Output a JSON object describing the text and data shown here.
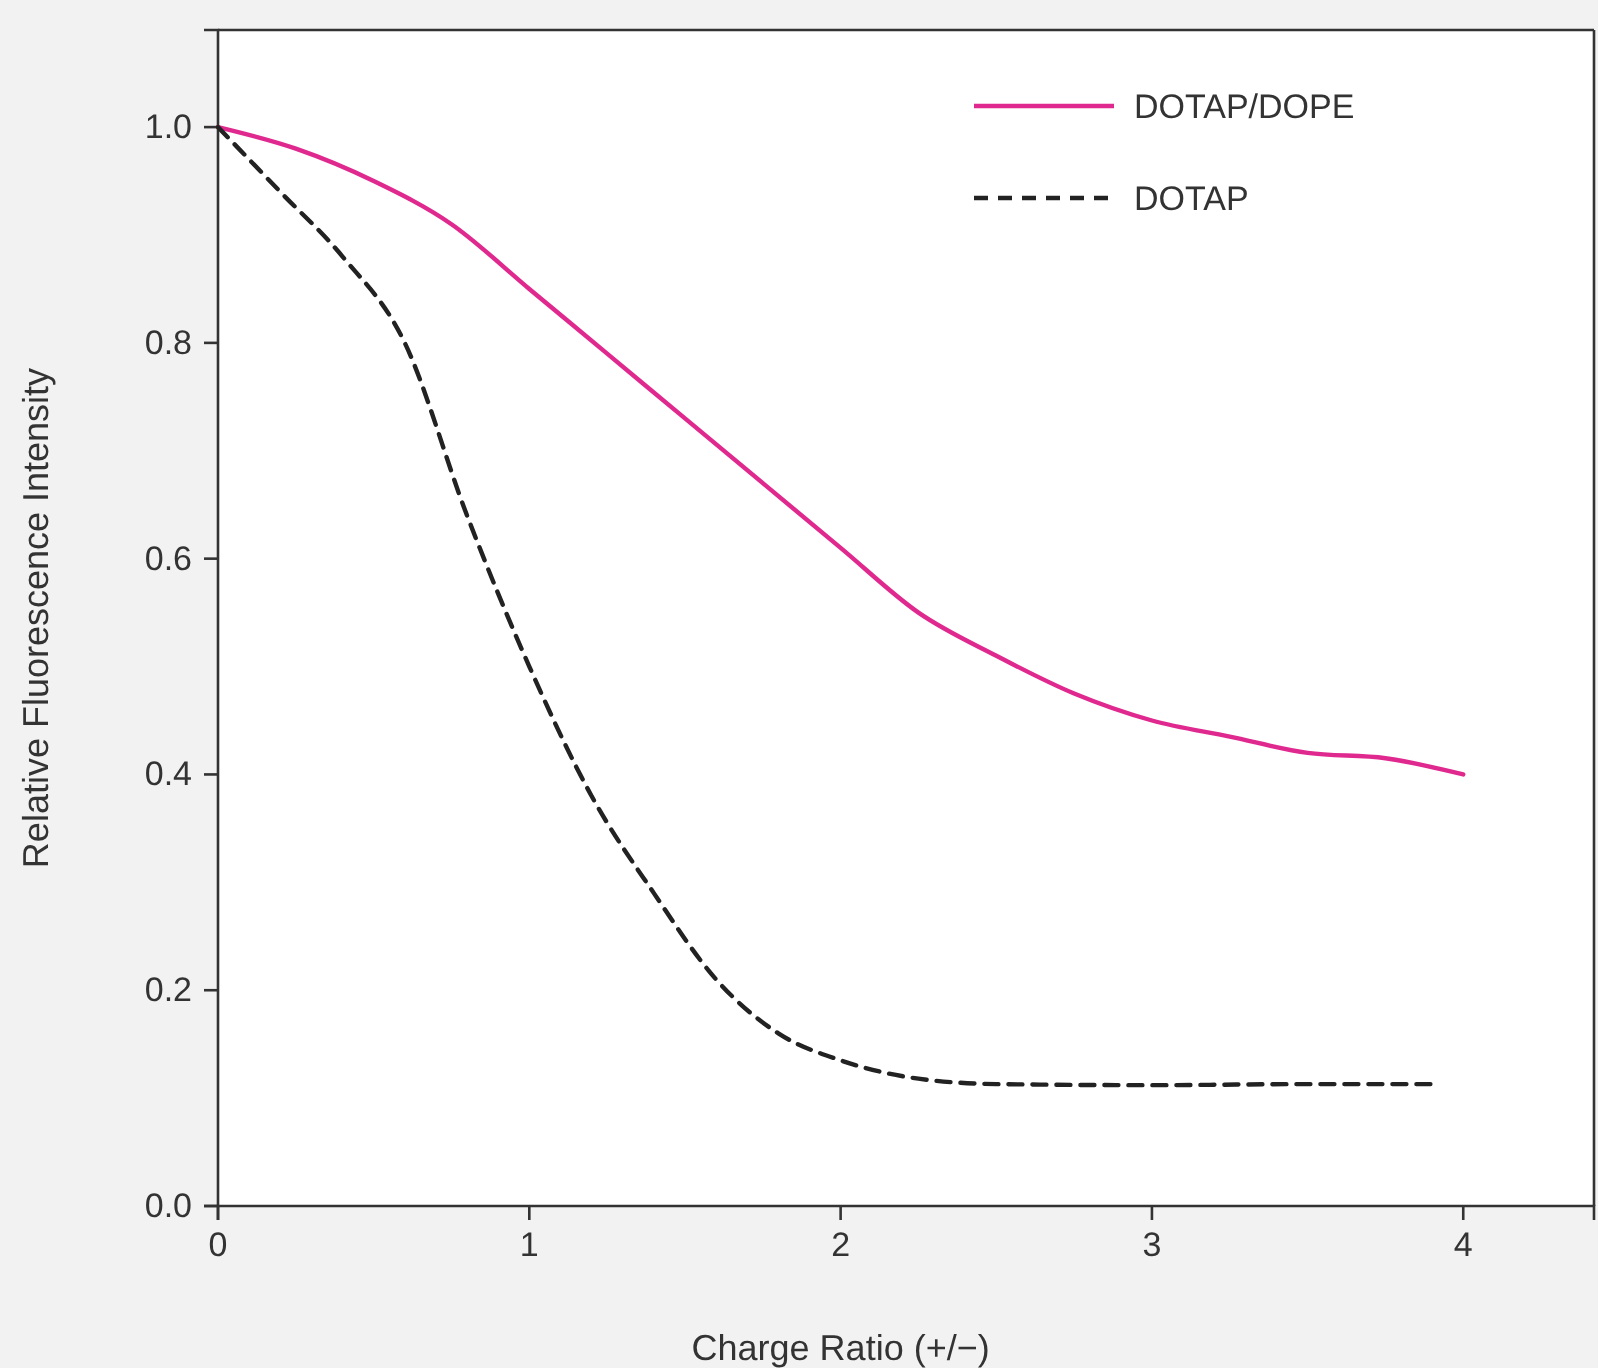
{
  "chart_data": {
    "type": "line",
    "xlabel": "Charge Ratio (+/−)",
    "ylabel": "Relative Fluorescence Intensity",
    "xlim": [
      0,
      4.42
    ],
    "xticks": [
      0,
      1,
      2,
      3,
      4
    ],
    "ylim": [
      0,
      1.09
    ],
    "yticks": [
      {
        "value": 0,
        "label": "0.0"
      },
      {
        "value": 0.2,
        "label": "0.2"
      },
      {
        "value": 0.4,
        "label": "0.4"
      },
      {
        "value": 0.6,
        "label": "0.6"
      },
      {
        "value": 0.8,
        "label": "0.8"
      },
      {
        "value": 1,
        "label": "1.0"
      }
    ],
    "legend": "top right",
    "grid": false,
    "series": [
      {
        "name": "DOTAP/DOPE",
        "color": "#e0298f",
        "line_style": "solid",
        "x": [
          0,
          0.25,
          0.5,
          0.75,
          1,
          1.25,
          1.5,
          1.75,
          2,
          2.25,
          2.5,
          2.75,
          3,
          3.25,
          3.5,
          3.75,
          4
        ],
        "values": [
          1.0,
          0.98,
          0.95,
          0.91,
          0.85,
          0.79,
          0.73,
          0.67,
          0.61,
          0.55,
          0.51,
          0.475,
          0.45,
          0.435,
          0.42,
          0.415,
          0.4
        ]
      },
      {
        "name": "DOTAP",
        "color": "#222222",
        "line_style": "dashed",
        "x": [
          0,
          0.2,
          0.4,
          0.6,
          0.8,
          1,
          1.2,
          1.4,
          1.6,
          1.8,
          2,
          2.25,
          2.5,
          3,
          3.5,
          3.9
        ],
        "values": [
          1.0,
          0.94,
          0.88,
          0.8,
          0.64,
          0.5,
          0.38,
          0.29,
          0.21,
          0.16,
          0.135,
          0.118,
          0.113,
          0.112,
          0.113,
          0.113
        ]
      }
    ]
  }
}
